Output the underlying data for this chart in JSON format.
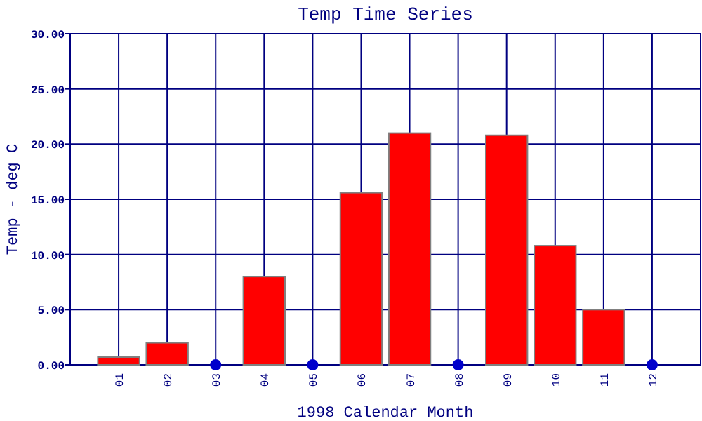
{
  "chart_data": {
    "type": "bar",
    "title": "Temp Time Series",
    "xlabel": "1998 Calendar Month",
    "ylabel": "Temp - deg C",
    "categories": [
      "01",
      "02",
      "03",
      "04",
      "05",
      "06",
      "07",
      "08",
      "09",
      "10",
      "11",
      "12"
    ],
    "series": [
      {
        "color": "#ff0000",
        "values": [
          0.7,
          2.0,
          null,
          8.0,
          null,
          15.6,
          21.0,
          null,
          20.8,
          10.8,
          5.0,
          null
        ]
      },
      {
        "type": "scatter",
        "color": "#0000cc",
        "x": [
          "03",
          "05",
          "08",
          "12"
        ],
        "values": [
          0,
          0,
          0,
          0
        ]
      }
    ],
    "ylim": [
      0,
      30
    ],
    "yticks": [
      {
        "value": 0,
        "label": "0.00"
      },
      {
        "value": 5,
        "label": "5.00"
      },
      {
        "value": 10,
        "label": "10.00"
      },
      {
        "value": 15,
        "label": "15.00"
      },
      {
        "value": 20,
        "label": "20.00"
      },
      {
        "value": 25,
        "label": "25.00"
      },
      {
        "value": 30,
        "label": "30.00"
      }
    ],
    "grid": true,
    "marker": "circle"
  }
}
